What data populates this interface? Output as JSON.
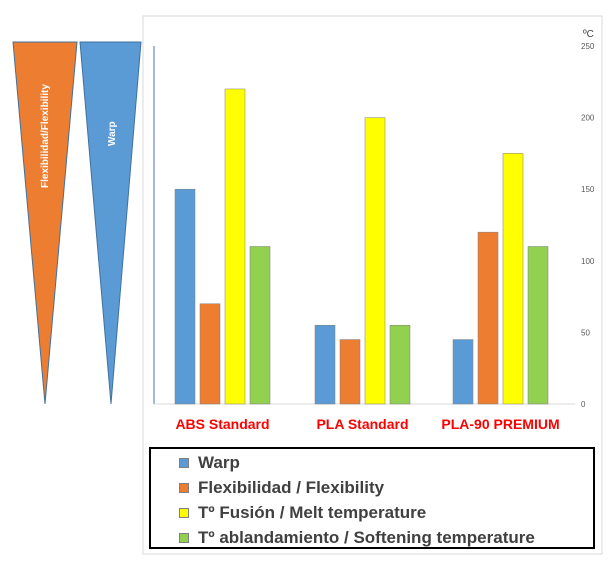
{
  "chart_data": {
    "type": "bar",
    "categories": [
      "ABS Standard",
      "PLA Standard",
      "PLA-90 PREMIUM"
    ],
    "series": [
      {
        "name": "Warp",
        "color": "#5b9bd5",
        "values": [
          150,
          55,
          45
        ]
      },
      {
        "name": "Flexibilidad / Flexibility",
        "color": "#ed7d31",
        "values": [
          70,
          45,
          120
        ]
      },
      {
        "name": "Tº Fusión / Melt temperature",
        "color": "#ffff00",
        "values": [
          220,
          200,
          175
        ]
      },
      {
        "name": "Tº ablandamiento / Softening temperature",
        "color": "#92d050",
        "values": [
          110,
          55,
          110
        ]
      }
    ],
    "ylim": [
      0,
      250
    ],
    "yticks": [
      "0",
      "50",
      "100",
      "150",
      "200",
      "250"
    ],
    "yunit": "ºC",
    "category_label_color": "#ff0000",
    "legend_position": "bottom",
    "grid": false
  },
  "side_indicators": [
    {
      "label": "Flexibilidad/Flexibility",
      "color": "#ed7d31"
    },
    {
      "label": "Warp",
      "color": "#5b9bd5"
    }
  ]
}
